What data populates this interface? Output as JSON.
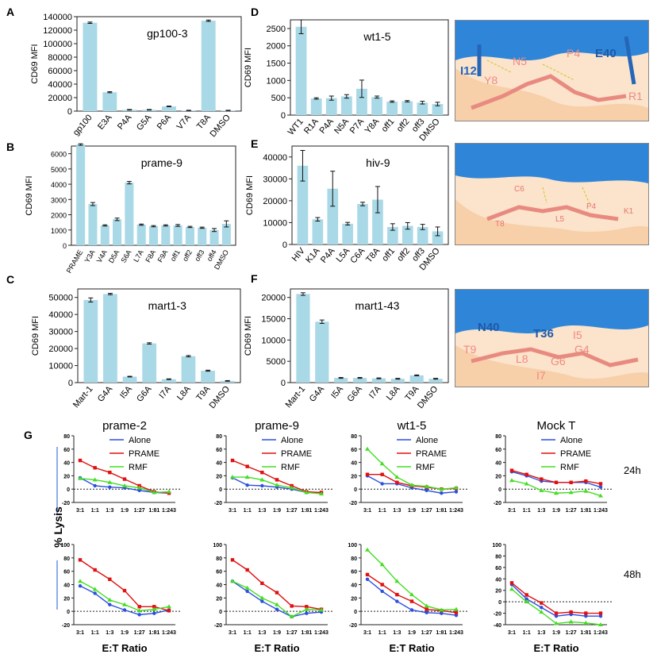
{
  "panel_letters": [
    "A",
    "B",
    "C",
    "D",
    "E",
    "F",
    "G"
  ],
  "chart_data": [
    {
      "id": "A",
      "type": "bar",
      "title": "gp100-3",
      "ylabel": "CD69 MFI",
      "ylim": [
        0,
        140000
      ],
      "yticks": [
        0,
        20000,
        40000,
        60000,
        80000,
        100000,
        120000,
        140000
      ],
      "yticklabels": [
        "0",
        "20000",
        "40000",
        "60000",
        "80000",
        "100000",
        "120000",
        "140000"
      ],
      "categories": [
        "gp100",
        "E3A",
        "P4A",
        "G5A",
        "P6A",
        "V7A",
        "T8A",
        "DMSO"
      ],
      "values": [
        131000,
        28000,
        2000,
        2000,
        7000,
        1000,
        134000,
        1000
      ],
      "errors": [
        1000,
        800,
        400,
        400,
        500,
        300,
        1000,
        300
      ]
    },
    {
      "id": "B",
      "type": "bar",
      "title": "prame-9",
      "ylabel": "CD69 MFI",
      "ylim": [
        0,
        6500
      ],
      "yticks": [
        0,
        1000,
        2000,
        3000,
        4000,
        5000,
        6000
      ],
      "yticklabels": [
        "0",
        "1000",
        "2000",
        "3000",
        "4000",
        "5000",
        "6000"
      ],
      "categories": [
        "PRAME",
        "Y3A",
        "V4A",
        "D5A",
        "S6A",
        "L7A",
        "F8A",
        "F9A",
        "off1",
        "off2",
        "off3",
        "off4",
        "DMSO"
      ],
      "values": [
        6600,
        2700,
        1300,
        1700,
        4100,
        1350,
        1250,
        1300,
        1300,
        1200,
        1150,
        1000,
        1400
      ],
      "errors": [
        50,
        100,
        40,
        80,
        80,
        40,
        40,
        40,
        60,
        40,
        40,
        100,
        200
      ]
    },
    {
      "id": "C",
      "type": "bar",
      "title": "mart1-3",
      "ylabel": "CD69 MFI",
      "ylim": [
        0,
        55000
      ],
      "yticks": [
        0,
        10000,
        20000,
        30000,
        40000,
        50000
      ],
      "yticklabels": [
        "0",
        "10000",
        "20000",
        "30000",
        "40000",
        "50000"
      ],
      "categories": [
        "Mart-1",
        "G4A",
        "I5A",
        "G6A",
        "I7A",
        "L8A",
        "T9A",
        "DMSO"
      ],
      "values": [
        48500,
        52000,
        3500,
        23000,
        2000,
        15500,
        7000,
        1000
      ],
      "errors": [
        1200,
        400,
        200,
        400,
        200,
        400,
        300,
        200
      ]
    },
    {
      "id": "D",
      "type": "bar",
      "title": "wt1-5",
      "ylabel": "CD69 MFI",
      "ylim": [
        0,
        2750
      ],
      "yticks": [
        0,
        500,
        1000,
        1500,
        2000,
        2500
      ],
      "yticklabels": [
        "0",
        "500",
        "1000",
        "1500",
        "2000",
        "2500"
      ],
      "categories": [
        "WT1",
        "R1A",
        "P4A",
        "N5A",
        "P7A",
        "Y8A",
        "off1",
        "off2",
        "off3",
        "DMSO"
      ],
      "values": [
        2550,
        480,
        490,
        540,
        760,
        520,
        390,
        400,
        360,
        320
      ],
      "errors": [
        200,
        20,
        60,
        50,
        250,
        30,
        20,
        20,
        40,
        50
      ]
    },
    {
      "id": "E",
      "type": "bar",
      "title": "hiv-9",
      "ylabel": "CD69 MFI",
      "ylim": [
        0,
        45000
      ],
      "yticks": [
        0,
        10000,
        20000,
        30000,
        40000
      ],
      "yticklabels": [
        "0",
        "10000",
        "20000",
        "30000",
        "40000"
      ],
      "categories": [
        "HIV",
        "K1A",
        "P4A",
        "L5A",
        "C6A",
        "T8A",
        "off1",
        "off2",
        "off3",
        "DMSO"
      ],
      "values": [
        36000,
        11500,
        25500,
        9500,
        18500,
        20500,
        8000,
        8500,
        8000,
        6000
      ],
      "errors": [
        7000,
        800,
        8000,
        600,
        800,
        6000,
        1500,
        1500,
        1200,
        2000
      ]
    },
    {
      "id": "F",
      "type": "bar",
      "title": "mart1-43",
      "ylabel": "CD69 MFI",
      "ylim": [
        0,
        22000
      ],
      "yticks": [
        0,
        5000,
        10000,
        15000,
        20000
      ],
      "yticklabels": [
        "0",
        "5000",
        "10000",
        "15000",
        "20000"
      ],
      "categories": [
        "Mart-1",
        "G4A",
        "I5A",
        "G6A",
        "I7A",
        "L8A",
        "T9A",
        "DMSO"
      ],
      "values": [
        20800,
        14300,
        1100,
        1100,
        1000,
        900,
        1700,
        900
      ],
      "errors": [
        300,
        400,
        100,
        100,
        100,
        100,
        100,
        100
      ]
    },
    {
      "id": "G-prame-2-24h",
      "type": "line",
      "title": "prame-2",
      "ylim": [
        -20,
        80
      ],
      "x": [
        "3:1",
        "1:1",
        "1:3",
        "1:9",
        "1:27",
        "1:81",
        "1:243"
      ],
      "series": [
        {
          "name": "Alone",
          "color": "#2b4fe0",
          "values": [
            17,
            5,
            3,
            2,
            -2,
            -5,
            -6
          ]
        },
        {
          "name": "PRAME",
          "color": "#e01010",
          "values": [
            43,
            32,
            25,
            15,
            5,
            -4,
            -6
          ]
        },
        {
          "name": "RMF",
          "color": "#44dd22",
          "values": [
            16,
            14,
            10,
            5,
            2,
            -5,
            -4
          ]
        }
      ]
    },
    {
      "id": "G-prame-9-24h",
      "type": "line",
      "title": "prame-9",
      "ylim": [
        -20,
        80
      ],
      "x": [
        "3:1",
        "1:1",
        "1:3",
        "1:9",
        "1:27",
        "1:81",
        "1:243"
      ],
      "series": [
        {
          "name": "Alone",
          "color": "#2b4fe0",
          "values": [
            17,
            6,
            5,
            3,
            0,
            -5,
            -6
          ]
        },
        {
          "name": "PRAME",
          "color": "#e01010",
          "values": [
            43,
            34,
            25,
            14,
            5,
            -4,
            -5
          ]
        },
        {
          "name": "RMF",
          "color": "#44dd22",
          "values": [
            18,
            18,
            14,
            6,
            2,
            -5,
            -7
          ]
        }
      ]
    },
    {
      "id": "G-wt1-5-24h",
      "type": "line",
      "title": "wt1-5",
      "ylim": [
        -20,
        80
      ],
      "x": [
        "3:1",
        "1:1",
        "1:3",
        "1:9",
        "1:27",
        "1:81",
        "1:243"
      ],
      "series": [
        {
          "name": "Alone",
          "color": "#2b4fe0",
          "values": [
            20,
            8,
            8,
            2,
            -2,
            -6,
            -4
          ]
        },
        {
          "name": "PRAME",
          "color": "#e01010",
          "values": [
            22,
            22,
            10,
            5,
            3,
            0,
            1
          ]
        },
        {
          "name": "RMF",
          "color": "#44dd22",
          "values": [
            60,
            38,
            18,
            6,
            4,
            0,
            2
          ]
        }
      ]
    },
    {
      "id": "G-mock-24h",
      "type": "line",
      "title": "Mock T",
      "ylim": [
        -20,
        80
      ],
      "x": [
        "3:1",
        "1:1",
        "1:3",
        "1:9",
        "1:27",
        "1:81",
        "1:243"
      ],
      "series": [
        {
          "name": "Alone",
          "color": "#2b4fe0",
          "values": [
            26,
            20,
            12,
            10,
            10,
            10,
            3
          ]
        },
        {
          "name": "PRAME",
          "color": "#e01010",
          "values": [
            28,
            22,
            15,
            10,
            10,
            12,
            8
          ]
        },
        {
          "name": "RMF",
          "color": "#44dd22",
          "values": [
            13,
            8,
            -2,
            -6,
            -5,
            -3,
            -10
          ]
        }
      ]
    },
    {
      "id": "G-prame-2-48h",
      "type": "line",
      "ylim": [
        -20,
        100
      ],
      "x": [
        "3:1",
        "1:1",
        "1:3",
        "1:9",
        "1:27",
        "1:81",
        "1:243"
      ],
      "series": [
        {
          "name": "Alone",
          "color": "#2b4fe0",
          "values": [
            38,
            27,
            10,
            2,
            -5,
            -3,
            2
          ]
        },
        {
          "name": "PRAME",
          "color": "#e01010",
          "values": [
            77,
            62,
            48,
            31,
            7,
            7,
            1
          ]
        },
        {
          "name": "RMF",
          "color": "#44dd22",
          "values": [
            45,
            33,
            17,
            10,
            1,
            3,
            7
          ]
        }
      ]
    },
    {
      "id": "G-prame-9-48h",
      "type": "line",
      "ylim": [
        -20,
        100
      ],
      "x": [
        "3:1",
        "1:1",
        "1:3",
        "1:9",
        "1:27",
        "1:81",
        "1:243"
      ],
      "series": [
        {
          "name": "Alone",
          "color": "#2b4fe0",
          "values": [
            45,
            30,
            15,
            3,
            -8,
            -3,
            -1
          ]
        },
        {
          "name": "PRAME",
          "color": "#e01010",
          "values": [
            77,
            62,
            42,
            28,
            8,
            7,
            3
          ]
        },
        {
          "name": "RMF",
          "color": "#44dd22",
          "values": [
            45,
            35,
            20,
            10,
            -8,
            3,
            2
          ]
        }
      ]
    },
    {
      "id": "G-wt1-5-48h",
      "type": "line",
      "ylim": [
        -20,
        100
      ],
      "x": [
        "3:1",
        "1:1",
        "1:3",
        "1:9",
        "1:27",
        "1:81",
        "1:243"
      ],
      "series": [
        {
          "name": "Alone",
          "color": "#2b4fe0",
          "values": [
            48,
            30,
            15,
            2,
            -2,
            -3,
            -6
          ]
        },
        {
          "name": "PRAME",
          "color": "#e01010",
          "values": [
            55,
            40,
            25,
            15,
            3,
            1,
            -2
          ]
        },
        {
          "name": "RMF",
          "color": "#44dd22",
          "values": [
            92,
            70,
            45,
            25,
            8,
            2,
            3
          ]
        }
      ]
    },
    {
      "id": "G-mock-48h",
      "type": "line",
      "ylim": [
        -40,
        100
      ],
      "x": [
        "3:1",
        "1:1",
        "1:3",
        "1:9",
        "1:27",
        "1:81",
        "1:243"
      ],
      "series": [
        {
          "name": "Alone",
          "color": "#2b4fe0",
          "values": [
            30,
            5,
            -10,
            -25,
            -22,
            -25,
            -25
          ]
        },
        {
          "name": "PRAME",
          "color": "#e01010",
          "values": [
            33,
            12,
            -2,
            -20,
            -18,
            -20,
            -20
          ]
        },
        {
          "name": "RMF",
          "color": "#44dd22",
          "values": [
            22,
            0,
            -18,
            -38,
            -35,
            -37,
            -40
          ]
        }
      ]
    }
  ],
  "legend": [
    "Alone",
    "PRAME",
    "RMF"
  ],
  "g_labels": {
    "ylabel": "% Lysis",
    "xlabel": "E:T Ratio",
    "row1": "24h",
    "row2": "48h"
  },
  "structures": [
    {
      "id": "struct-D",
      "labels": [
        "I12",
        "N5",
        "P4",
        "E40",
        "Y8",
        "R1"
      ]
    },
    {
      "id": "struct-E",
      "labels": [
        "C6",
        "P4",
        "K1",
        "T8",
        "L5"
      ]
    },
    {
      "id": "struct-F",
      "labels": [
        "N40",
        "T36",
        "I5",
        "T9",
        "L8",
        "G4",
        "G6",
        "I7"
      ]
    }
  ]
}
